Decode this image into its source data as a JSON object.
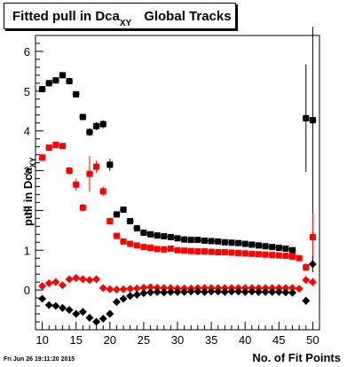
{
  "title": {
    "main": "Fitted pull in Dca",
    "sub": "XY",
    "suffix": "Global Tracks"
  },
  "stamp": "Fri Jun 26 19:11:20 2015",
  "chart_data": {
    "type": "scatter",
    "title": "Fitted pull in Dca XY Global Tracks",
    "xlabel": "No. of Fit Points",
    "ylabel_main": "pull in Dca",
    "ylabel_sub": "XY",
    "xlim": [
      9,
      51
    ],
    "ylim": [
      -1,
      6.4
    ],
    "x_ticks": [
      10,
      15,
      20,
      25,
      30,
      35,
      40,
      45,
      50
    ],
    "y_ticks": [
      0,
      1,
      2,
      3,
      4,
      5,
      6
    ],
    "grid": false,
    "legend": "none",
    "series": [
      {
        "marker": "square",
        "color": "#000000",
        "points": [
          {
            "x": 10,
            "y": 5.05,
            "err": 0.08
          },
          {
            "x": 11,
            "y": 5.2,
            "err": 0.08
          },
          {
            "x": 12,
            "y": 5.27,
            "err": 0.08
          },
          {
            "x": 13,
            "y": 5.4,
            "err": 0.08
          },
          {
            "x": 14,
            "y": 5.25,
            "err": 0.08
          },
          {
            "x": 15,
            "y": 4.92,
            "err": 0.08
          },
          {
            "x": 16,
            "y": 4.35,
            "err": 0.08
          },
          {
            "x": 17,
            "y": 3.97,
            "err": 0.1
          },
          {
            "x": 18,
            "y": 4.12,
            "err": 0.1
          },
          {
            "x": 19,
            "y": 4.17,
            "err": 0.1
          },
          {
            "x": 20,
            "y": 3.15,
            "err": 0.15
          },
          {
            "x": 21,
            "y": 1.9,
            "err": 0.05
          },
          {
            "x": 22,
            "y": 2.02,
            "err": 0.05
          },
          {
            "x": 23,
            "y": 1.73,
            "err": 0.05
          },
          {
            "x": 24,
            "y": 1.55,
            "err": 0.04
          },
          {
            "x": 25,
            "y": 1.44,
            "err": 0.03
          },
          {
            "x": 26,
            "y": 1.4,
            "err": 0.03
          },
          {
            "x": 27,
            "y": 1.37,
            "err": 0.03
          },
          {
            "x": 28,
            "y": 1.35,
            "err": 0.03
          },
          {
            "x": 29,
            "y": 1.33,
            "err": 0.03
          },
          {
            "x": 30,
            "y": 1.3,
            "err": 0.03
          },
          {
            "x": 31,
            "y": 1.27,
            "err": 0.03
          },
          {
            "x": 32,
            "y": 1.26,
            "err": 0.03
          },
          {
            "x": 33,
            "y": 1.26,
            "err": 0.03
          },
          {
            "x": 34,
            "y": 1.24,
            "err": 0.03
          },
          {
            "x": 35,
            "y": 1.23,
            "err": 0.03
          },
          {
            "x": 36,
            "y": 1.22,
            "err": 0.03
          },
          {
            "x": 37,
            "y": 1.2,
            "err": 0.03
          },
          {
            "x": 38,
            "y": 1.19,
            "err": 0.03
          },
          {
            "x": 39,
            "y": 1.18,
            "err": 0.03
          },
          {
            "x": 40,
            "y": 1.16,
            "err": 0.03
          },
          {
            "x": 41,
            "y": 1.14,
            "err": 0.03
          },
          {
            "x": 42,
            "y": 1.12,
            "err": 0.03
          },
          {
            "x": 43,
            "y": 1.1,
            "err": 0.03
          },
          {
            "x": 44,
            "y": 1.08,
            "err": 0.03
          },
          {
            "x": 45,
            "y": 1.06,
            "err": 0.03
          },
          {
            "x": 46,
            "y": 1.04,
            "err": 0.03
          },
          {
            "x": 47,
            "y": 1.0,
            "err": 0.04
          },
          {
            "x": 49,
            "y": 4.32,
            "err": 1.35
          },
          {
            "x": 50,
            "y": 4.27,
            "err": 2.35
          }
        ]
      },
      {
        "marker": "square",
        "color": "#ff0000",
        "points": [
          {
            "x": 10,
            "y": 3.33,
            "err": 0.08
          },
          {
            "x": 11,
            "y": 3.58,
            "err": 0.08
          },
          {
            "x": 12,
            "y": 3.65,
            "err": 0.08
          },
          {
            "x": 13,
            "y": 3.62,
            "err": 0.08
          },
          {
            "x": 14,
            "y": 3.0,
            "err": 0.1
          },
          {
            "x": 15,
            "y": 2.65,
            "err": 0.15
          },
          {
            "x": 16,
            "y": 2.07,
            "err": 0.1
          },
          {
            "x": 17,
            "y": 2.92,
            "err": 0.45
          },
          {
            "x": 18,
            "y": 3.1,
            "err": 0.15
          },
          {
            "x": 19,
            "y": 2.48,
            "err": 0.12
          },
          {
            "x": 20,
            "y": 1.73,
            "err": 0.08
          },
          {
            "x": 21,
            "y": 1.36,
            "err": 0.04
          },
          {
            "x": 22,
            "y": 1.22,
            "err": 0.04
          },
          {
            "x": 23,
            "y": 1.16,
            "err": 0.03
          },
          {
            "x": 24,
            "y": 1.12,
            "err": 0.03
          },
          {
            "x": 25,
            "y": 1.08,
            "err": 0.03
          },
          {
            "x": 26,
            "y": 1.06,
            "err": 0.03
          },
          {
            "x": 27,
            "y": 1.03,
            "err": 0.03
          },
          {
            "x": 28,
            "y": 1.02,
            "err": 0.03
          },
          {
            "x": 29,
            "y": 1.04,
            "err": 0.03
          },
          {
            "x": 30,
            "y": 1.0,
            "err": 0.03
          },
          {
            "x": 31,
            "y": 0.99,
            "err": 0.03
          },
          {
            "x": 32,
            "y": 0.98,
            "err": 0.03
          },
          {
            "x": 33,
            "y": 0.97,
            "err": 0.03
          },
          {
            "x": 34,
            "y": 0.97,
            "err": 0.03
          },
          {
            "x": 35,
            "y": 0.96,
            "err": 0.03
          },
          {
            "x": 36,
            "y": 0.95,
            "err": 0.03
          },
          {
            "x": 37,
            "y": 0.95,
            "err": 0.03
          },
          {
            "x": 38,
            "y": 0.94,
            "err": 0.03
          },
          {
            "x": 39,
            "y": 0.93,
            "err": 0.03
          },
          {
            "x": 40,
            "y": 0.92,
            "err": 0.03
          },
          {
            "x": 41,
            "y": 0.91,
            "err": 0.03
          },
          {
            "x": 42,
            "y": 0.9,
            "err": 0.03
          },
          {
            "x": 43,
            "y": 0.89,
            "err": 0.03
          },
          {
            "x": 44,
            "y": 0.88,
            "err": 0.03
          },
          {
            "x": 45,
            "y": 0.87,
            "err": 0.03
          },
          {
            "x": 46,
            "y": 0.86,
            "err": 0.03
          },
          {
            "x": 47,
            "y": 0.84,
            "err": 0.03
          },
          {
            "x": 48,
            "y": 0.8,
            "err": 0.05
          },
          {
            "x": 49,
            "y": 0.57,
            "err": 0.1
          },
          {
            "x": 50,
            "y": 1.33,
            "err": 0.6
          }
        ]
      },
      {
        "marker": "diamond",
        "color": "#ff0000",
        "points": [
          {
            "x": 10,
            "y": 0.1,
            "err": 0.05
          },
          {
            "x": 11,
            "y": 0.17,
            "err": 0.05
          },
          {
            "x": 12,
            "y": 0.2,
            "err": 0.05
          },
          {
            "x": 13,
            "y": 0.12,
            "err": 0.05
          },
          {
            "x": 14,
            "y": 0.27,
            "err": 0.05
          },
          {
            "x": 15,
            "y": 0.3,
            "err": 0.05
          },
          {
            "x": 16,
            "y": 0.27,
            "err": 0.05
          },
          {
            "x": 17,
            "y": 0.25,
            "err": 0.06
          },
          {
            "x": 18,
            "y": 0.27,
            "err": 0.06
          },
          {
            "x": 19,
            "y": 0.05,
            "err": 0.05
          },
          {
            "x": 20,
            "y": 0.02,
            "err": 0.03
          },
          {
            "x": 21,
            "y": 0.01,
            "err": 0.03
          },
          {
            "x": 22,
            "y": 0.02,
            "err": 0.03
          },
          {
            "x": 23,
            "y": 0.03,
            "err": 0.03
          },
          {
            "x": 24,
            "y": 0.04,
            "err": 0.03
          },
          {
            "x": 25,
            "y": 0.06,
            "err": 0.03
          },
          {
            "x": 26,
            "y": 0.07,
            "err": 0.03
          },
          {
            "x": 27,
            "y": 0.06,
            "err": 0.03
          },
          {
            "x": 28,
            "y": 0.05,
            "err": 0.03
          },
          {
            "x": 29,
            "y": 0.05,
            "err": 0.03
          },
          {
            "x": 30,
            "y": 0.04,
            "err": 0.03
          },
          {
            "x": 31,
            "y": 0.04,
            "err": 0.03
          },
          {
            "x": 32,
            "y": 0.04,
            "err": 0.03
          },
          {
            "x": 33,
            "y": 0.05,
            "err": 0.03
          },
          {
            "x": 34,
            "y": 0.05,
            "err": 0.03
          },
          {
            "x": 35,
            "y": 0.05,
            "err": 0.03
          },
          {
            "x": 36,
            "y": 0.05,
            "err": 0.03
          },
          {
            "x": 37,
            "y": 0.05,
            "err": 0.03
          },
          {
            "x": 38,
            "y": 0.05,
            "err": 0.03
          },
          {
            "x": 39,
            "y": 0.05,
            "err": 0.03
          },
          {
            "x": 40,
            "y": 0.05,
            "err": 0.03
          },
          {
            "x": 41,
            "y": 0.05,
            "err": 0.03
          },
          {
            "x": 42,
            "y": 0.05,
            "err": 0.03
          },
          {
            "x": 43,
            "y": 0.05,
            "err": 0.03
          },
          {
            "x": 44,
            "y": 0.05,
            "err": 0.03
          },
          {
            "x": 45,
            "y": 0.05,
            "err": 0.03
          },
          {
            "x": 46,
            "y": 0.05,
            "err": 0.03
          },
          {
            "x": 47,
            "y": 0.05,
            "err": 0.03
          },
          {
            "x": 48,
            "y": 0.03,
            "err": 0.05
          },
          {
            "x": 49,
            "y": 0.25,
            "err": 0.08
          },
          {
            "x": 50,
            "y": 0.2,
            "err": 0.1
          }
        ]
      },
      {
        "marker": "diamond",
        "color": "#000000",
        "points": [
          {
            "x": 10,
            "y": -0.22,
            "err": 0.05
          },
          {
            "x": 11,
            "y": -0.38,
            "err": 0.05
          },
          {
            "x": 12,
            "y": -0.4,
            "err": 0.05
          },
          {
            "x": 13,
            "y": -0.45,
            "err": 0.05
          },
          {
            "x": 14,
            "y": -0.5,
            "err": 0.05
          },
          {
            "x": 15,
            "y": -0.6,
            "err": 0.05
          },
          {
            "x": 16,
            "y": -0.55,
            "err": 0.06
          },
          {
            "x": 17,
            "y": -0.7,
            "err": 0.07
          },
          {
            "x": 18,
            "y": -0.8,
            "err": 0.07
          },
          {
            "x": 19,
            "y": -0.72,
            "err": 0.06
          },
          {
            "x": 20,
            "y": -0.6,
            "err": 0.05
          },
          {
            "x": 21,
            "y": -0.3,
            "err": 0.04
          },
          {
            "x": 22,
            "y": -0.22,
            "err": 0.03
          },
          {
            "x": 23,
            "y": -0.15,
            "err": 0.03
          },
          {
            "x": 24,
            "y": -0.12,
            "err": 0.03
          },
          {
            "x": 25,
            "y": -0.08,
            "err": 0.03
          },
          {
            "x": 26,
            "y": -0.06,
            "err": 0.03
          },
          {
            "x": 27,
            "y": -0.05,
            "err": 0.03
          },
          {
            "x": 28,
            "y": -0.06,
            "err": 0.03
          },
          {
            "x": 29,
            "y": -0.05,
            "err": 0.03
          },
          {
            "x": 30,
            "y": -0.05,
            "err": 0.03
          },
          {
            "x": 31,
            "y": -0.05,
            "err": 0.03
          },
          {
            "x": 32,
            "y": -0.04,
            "err": 0.03
          },
          {
            "x": 33,
            "y": -0.04,
            "err": 0.03
          },
          {
            "x": 34,
            "y": -0.05,
            "err": 0.03
          },
          {
            "x": 35,
            "y": -0.04,
            "err": 0.03
          },
          {
            "x": 36,
            "y": -0.04,
            "err": 0.03
          },
          {
            "x": 37,
            "y": -0.05,
            "err": 0.03
          },
          {
            "x": 38,
            "y": -0.04,
            "err": 0.03
          },
          {
            "x": 39,
            "y": -0.04,
            "err": 0.03
          },
          {
            "x": 40,
            "y": -0.05,
            "err": 0.03
          },
          {
            "x": 41,
            "y": -0.04,
            "err": 0.03
          },
          {
            "x": 42,
            "y": -0.05,
            "err": 0.03
          },
          {
            "x": 43,
            "y": -0.05,
            "err": 0.03
          },
          {
            "x": 44,
            "y": -0.05,
            "err": 0.03
          },
          {
            "x": 45,
            "y": -0.05,
            "err": 0.03
          },
          {
            "x": 46,
            "y": -0.06,
            "err": 0.03
          },
          {
            "x": 47,
            "y": -0.07,
            "err": 0.03
          },
          {
            "x": 49,
            "y": -0.27,
            "err": 0.1
          },
          {
            "x": 50,
            "y": 0.65,
            "err": 0.2
          }
        ]
      }
    ]
  }
}
